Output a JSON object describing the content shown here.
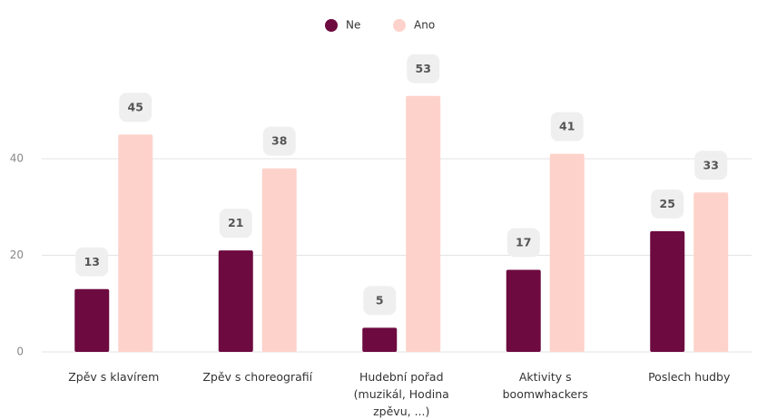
{
  "chart_data": {
    "type": "bar",
    "categories": [
      "Zpěv s klavírem",
      "Zpěv s choreografií",
      "Hudební pořad (muzikál, Hodina zpěvu, ...)",
      "Aktivity s boomwhackers",
      "Poslech hudby"
    ],
    "series": [
      {
        "name": "Ne",
        "color": "#6d0a3f",
        "values": [
          13,
          21,
          5,
          17,
          25
        ]
      },
      {
        "name": "Ano",
        "color": "#fdd2ca",
        "values": [
          45,
          38,
          53,
          41,
          33
        ]
      }
    ],
    "ylim": [
      0,
      60
    ],
    "yticks": [
      0,
      20,
      40
    ],
    "grid": true,
    "legend": "top"
  }
}
